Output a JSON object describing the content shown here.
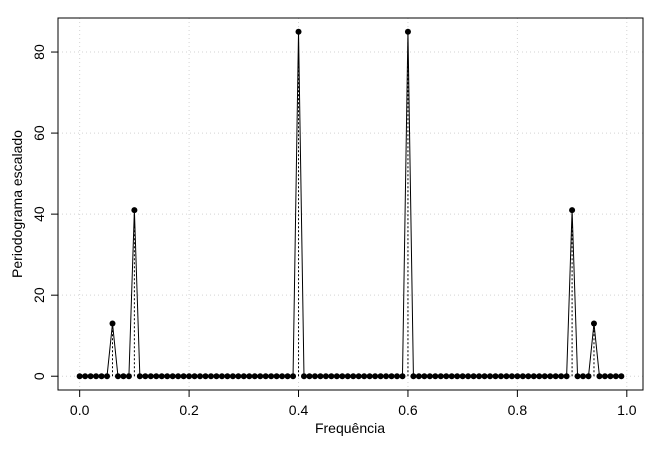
{
  "chart_data": {
    "type": "line",
    "xlabel": "Frequência",
    "ylabel": "Periodograma escalado",
    "x": [
      0,
      0.01,
      0.02,
      0.03,
      0.04,
      0.05,
      0.06,
      0.07,
      0.08,
      0.09,
      0.1,
      0.11,
      0.12,
      0.13,
      0.14,
      0.15,
      0.16,
      0.17,
      0.18,
      0.19,
      0.2,
      0.21,
      0.22,
      0.23,
      0.24,
      0.25,
      0.26,
      0.27,
      0.28,
      0.29,
      0.3,
      0.31,
      0.32,
      0.33,
      0.34,
      0.35,
      0.36,
      0.37,
      0.38,
      0.39,
      0.4,
      0.41,
      0.42,
      0.43,
      0.44,
      0.45,
      0.46,
      0.47,
      0.48,
      0.49,
      0.5,
      0.51,
      0.52,
      0.53,
      0.54,
      0.55,
      0.56,
      0.57,
      0.58,
      0.59,
      0.6,
      0.61,
      0.62,
      0.63,
      0.64,
      0.65,
      0.66,
      0.67,
      0.68,
      0.69,
      0.7,
      0.71,
      0.72,
      0.73,
      0.74,
      0.75,
      0.76,
      0.77,
      0.78,
      0.79,
      0.8,
      0.81,
      0.82,
      0.83,
      0.84,
      0.85,
      0.86,
      0.87,
      0.88,
      0.89,
      0.9,
      0.91,
      0.92,
      0.93,
      0.94,
      0.95,
      0.96,
      0.97,
      0.98,
      0.99
    ],
    "values": [
      0,
      0,
      0,
      0,
      0,
      0,
      13,
      0,
      0,
      0,
      41,
      0,
      0,
      0,
      0,
      0,
      0,
      0,
      0,
      0,
      0,
      0,
      0,
      0,
      0,
      0,
      0,
      0,
      0,
      0,
      0,
      0,
      0,
      0,
      0,
      0,
      0,
      0,
      0,
      0,
      85,
      0,
      0,
      0,
      0,
      0,
      0,
      0,
      0,
      0,
      0,
      0,
      0,
      0,
      0,
      0,
      0,
      0,
      0,
      0,
      85,
      0,
      0,
      0,
      0,
      0,
      0,
      0,
      0,
      0,
      0,
      0,
      0,
      0,
      0,
      0,
      0,
      0,
      0,
      0,
      0,
      0,
      0,
      0,
      0,
      0,
      0,
      0,
      0,
      0,
      41,
      0,
      0,
      0,
      13,
      0,
      0,
      0,
      0,
      0
    ],
    "color": "#000000",
    "xlim": [
      -0.0396,
      1.0296
    ],
    "ylim": [
      -3.4,
      88.4
    ],
    "xticks": [
      {
        "value": 0,
        "label": "0.0"
      },
      0.2,
      0.4,
      0.6,
      0.8,
      {
        "value": 1,
        "label": "1.0"
      }
    ],
    "yticks": [
      0,
      20,
      40,
      60,
      80
    ],
    "grid": true
  }
}
